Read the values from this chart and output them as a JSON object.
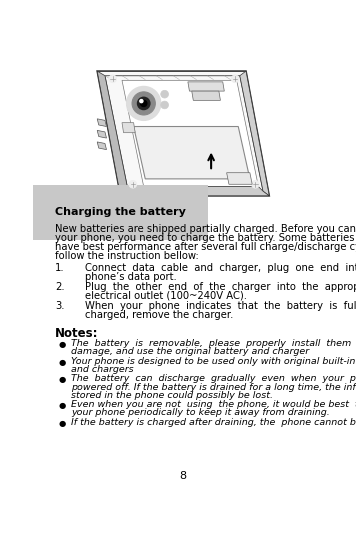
{
  "title": "Charging the battery",
  "bg_color": "#ffffff",
  "page_number": "8",
  "intro_text": "New batteries are shipped partially charged. Before you can use your phone, you need to charge the battery. Some batteries will have best performance after several full charge/discharge cycles, follow the instruction bellow:",
  "numbered_items": [
    [
      "Connect  data  cable  and  charger,  plug  one  end  into  your",
      "phone’s data port."
    ],
    [
      "Plug  the  other  end  of  the  charger  into  the  appropriate",
      "electrical outlet (100~240V AC)."
    ],
    [
      "When  your  phone  indicates  that  the  battery  is  fully",
      "charged, remove the charger."
    ]
  ],
  "notes_title": "Notes:",
  "bullet_items": [
    [
      "The  battery  is  removable,  please  properly  install  them  to  prevent",
      "damage, and use the original battery and charger"
    ],
    [
      "Your phone is designed to be used only with original built-in batteries",
      "and chargers"
    ],
    [
      "The  battery  can  discharge  gradually  even  when  your  phone  is",
      "powered off. If the battery is drained for a long time, the information",
      "stored in the phone could possibly be lost."
    ],
    [
      "Even when you are not  using  the phone, it would be best  to charge",
      "your phone periodically to keep it away from draining."
    ],
    [
      "If the battery is charged after draining, the  phone cannot be  turned"
    ]
  ],
  "font_family": "DejaVu Sans",
  "fs_body": 7.2,
  "fs_title": 8.0,
  "fs_notes_title": 8.5,
  "fs_bullet": 6.8
}
